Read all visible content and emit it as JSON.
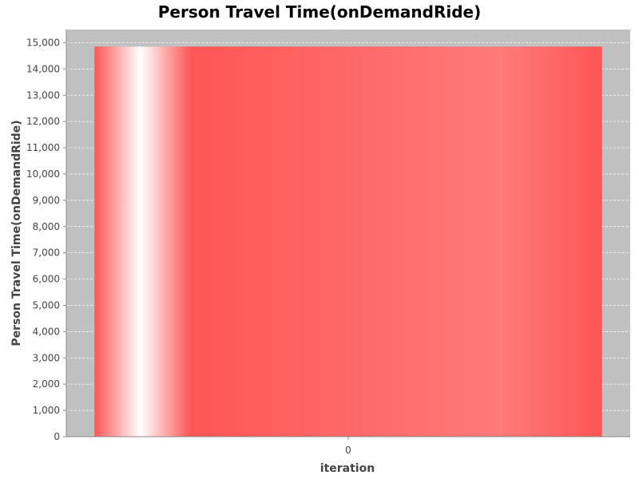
{
  "chart_data": {
    "type": "bar",
    "title": "Person Travel Time(onDemandRide)",
    "xlabel": "iteration",
    "ylabel": "Person Travel Time(onDemandRide)",
    "categories": [
      "0"
    ],
    "series": [
      {
        "name": "onDemandRide",
        "values": [
          14850
        ]
      }
    ],
    "ylim": [
      0,
      15500
    ],
    "yticks": [
      0,
      1000,
      2000,
      3000,
      4000,
      5000,
      6000,
      7000,
      8000,
      9000,
      10000,
      11000,
      12000,
      13000,
      14000,
      15000
    ],
    "ytick_labels": [
      "0",
      "1,000",
      "2,000",
      "3,000",
      "4,000",
      "5,000",
      "6,000",
      "7,000",
      "8,000",
      "9,000",
      "10,000",
      "11,000",
      "12,000",
      "13,000",
      "14,000",
      "15,000"
    ],
    "grid": true,
    "legend": "none"
  },
  "colors": {
    "plot_background": "#c0c0c0",
    "gridline": "#ffffff",
    "bar": "#ff5555",
    "bar_highlight": "#ffffff"
  }
}
